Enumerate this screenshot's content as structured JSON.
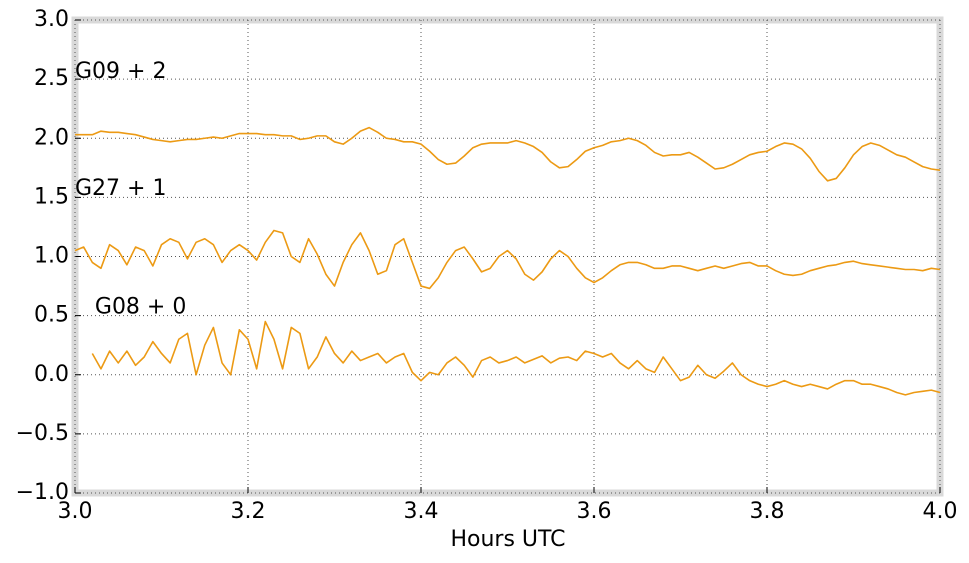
{
  "chart_data": {
    "type": "line",
    "xlabel": "Hours UTC",
    "xlim": [
      3.0,
      4.0
    ],
    "ylim": [
      -1.0,
      3.0
    ],
    "xticks": [
      {
        "value": 3.0,
        "label": "3.0"
      },
      {
        "value": 3.2,
        "label": "3.2"
      },
      {
        "value": 3.4,
        "label": "3.4"
      },
      {
        "value": 3.6,
        "label": "3.6"
      },
      {
        "value": 3.8,
        "label": "3.8"
      },
      {
        "value": 4.0,
        "label": "4.0"
      }
    ],
    "yticks": [
      {
        "value": -1.0,
        "label": "−1.0"
      },
      {
        "value": -0.5,
        "label": "−0.5"
      },
      {
        "value": 0.0,
        "label": "0.0"
      },
      {
        "value": 0.5,
        "label": "0.5"
      },
      {
        "value": 1.0,
        "label": "1.0"
      },
      {
        "value": 1.5,
        "label": "1.5"
      },
      {
        "value": 2.0,
        "label": "2.0"
      },
      {
        "value": 2.5,
        "label": "2.5"
      },
      {
        "value": 3.0,
        "label": "3.0"
      }
    ],
    "grid": true,
    "annotations": [
      {
        "text": "G09 + 2",
        "x": 3.0,
        "y": 2.56
      },
      {
        "text": "G27 + 1",
        "x": 3.0,
        "y": 1.57
      },
      {
        "text": "G08 + 0",
        "x": 3.023,
        "y": 0.57
      }
    ],
    "x": [
      3.0,
      3.01,
      3.02,
      3.03,
      3.04,
      3.05,
      3.06,
      3.07,
      3.08,
      3.09,
      3.1,
      3.11,
      3.12,
      3.13,
      3.14,
      3.15,
      3.16,
      3.17,
      3.18,
      3.19,
      3.2,
      3.21,
      3.22,
      3.23,
      3.24,
      3.25,
      3.26,
      3.27,
      3.28,
      3.29,
      3.3,
      3.31,
      3.32,
      3.33,
      3.34,
      3.35,
      3.36,
      3.37,
      3.38,
      3.39,
      3.4,
      3.41,
      3.42,
      3.43,
      3.44,
      3.45,
      3.46,
      3.47,
      3.48,
      3.49,
      3.5,
      3.51,
      3.52,
      3.53,
      3.54,
      3.55,
      3.56,
      3.57,
      3.58,
      3.59,
      3.6,
      3.61,
      3.62,
      3.63,
      3.64,
      3.65,
      3.66,
      3.67,
      3.68,
      3.69,
      3.7,
      3.71,
      3.72,
      3.73,
      3.74,
      3.75,
      3.76,
      3.77,
      3.78,
      3.79,
      3.8,
      3.81,
      3.82,
      3.83,
      3.84,
      3.85,
      3.86,
      3.87,
      3.88,
      3.89,
      3.9,
      3.91,
      3.92,
      3.93,
      3.94,
      3.95,
      3.96,
      3.97,
      3.98,
      3.99,
      4.0
    ],
    "series": [
      {
        "color": "#ec9a14",
        "values": [
          2.03,
          2.03,
          2.03,
          2.06,
          2.05,
          2.05,
          2.04,
          2.03,
          2.01,
          1.99,
          1.98,
          1.97,
          1.98,
          1.99,
          1.99,
          2.0,
          2.01,
          2.0,
          2.02,
          2.04,
          2.04,
          2.04,
          2.03,
          2.03,
          2.02,
          2.02,
          1.99,
          2.0,
          2.02,
          2.02,
          1.97,
          1.95,
          2.0,
          2.06,
          2.09,
          2.05,
          2.0,
          1.99,
          1.97,
          1.97,
          1.95,
          1.89,
          1.82,
          1.78,
          1.79,
          1.85,
          1.92,
          1.95,
          1.96,
          1.96,
          1.96,
          1.98,
          1.96,
          1.93,
          1.88,
          1.8,
          1.75,
          1.76,
          1.82,
          1.89,
          1.92,
          1.94,
          1.97,
          1.98,
          2.0,
          1.98,
          1.94,
          1.88,
          1.85,
          1.86,
          1.86,
          1.88,
          1.84,
          1.79,
          1.74,
          1.75,
          1.78,
          1.82,
          1.86,
          1.88,
          1.89,
          1.93,
          1.96,
          1.95,
          1.91,
          1.83,
          1.72,
          1.64,
          1.66,
          1.75,
          1.86,
          1.93,
          1.96,
          1.94,
          1.9,
          1.86,
          1.84,
          1.8,
          1.76,
          1.74,
          1.73
        ]
      },
      {
        "color": "#ec9a14",
        "values": [
          1.05,
          1.08,
          0.95,
          0.9,
          1.1,
          1.05,
          0.93,
          1.08,
          1.05,
          0.92,
          1.1,
          1.15,
          1.12,
          0.98,
          1.12,
          1.15,
          1.1,
          0.95,
          1.05,
          1.1,
          1.05,
          0.97,
          1.12,
          1.22,
          1.2,
          1.0,
          0.95,
          1.15,
          1.02,
          0.85,
          0.75,
          0.95,
          1.1,
          1.2,
          1.05,
          0.85,
          0.88,
          1.1,
          1.15,
          0.95,
          0.75,
          0.73,
          0.82,
          0.95,
          1.05,
          1.08,
          0.98,
          0.87,
          0.9,
          1.0,
          1.05,
          0.98,
          0.85,
          0.8,
          0.87,
          0.98,
          1.05,
          1.0,
          0.9,
          0.82,
          0.78,
          0.82,
          0.88,
          0.93,
          0.95,
          0.95,
          0.93,
          0.9,
          0.9,
          0.92,
          0.92,
          0.9,
          0.88,
          0.9,
          0.92,
          0.9,
          0.92,
          0.94,
          0.95,
          0.92,
          0.92,
          0.88,
          0.85,
          0.84,
          0.85,
          0.88,
          0.9,
          0.92,
          0.93,
          0.95,
          0.96,
          0.94,
          0.93,
          0.92,
          0.91,
          0.9,
          0.89,
          0.89,
          0.88,
          0.9,
          0.89
        ]
      },
      {
        "color": "#ec9a14",
        "values": [
          null,
          null,
          0.18,
          0.05,
          0.2,
          0.1,
          0.2,
          0.08,
          0.15,
          0.28,
          0.18,
          0.1,
          0.3,
          0.35,
          0.0,
          0.25,
          0.4,
          0.1,
          0.0,
          0.38,
          0.3,
          0.05,
          0.45,
          0.3,
          0.05,
          0.4,
          0.35,
          0.05,
          0.15,
          0.32,
          0.18,
          0.1,
          0.2,
          0.12,
          0.15,
          0.18,
          0.1,
          0.15,
          0.18,
          0.02,
          -0.05,
          0.02,
          0.0,
          0.1,
          0.15,
          0.08,
          -0.02,
          0.12,
          0.15,
          0.1,
          0.12,
          0.15,
          0.1,
          0.13,
          0.16,
          0.1,
          0.14,
          0.15,
          0.12,
          0.2,
          0.18,
          0.15,
          0.18,
          0.1,
          0.05,
          0.12,
          0.05,
          0.02,
          0.15,
          0.05,
          -0.05,
          -0.02,
          0.08,
          0.0,
          -0.03,
          0.03,
          0.1,
          0.0,
          -0.05,
          -0.08,
          -0.1,
          -0.08,
          -0.05,
          -0.08,
          -0.1,
          -0.08,
          -0.1,
          -0.12,
          -0.08,
          -0.05,
          -0.05,
          -0.08,
          -0.08,
          -0.1,
          -0.12,
          -0.15,
          -0.17,
          -0.15,
          -0.14,
          -0.13,
          -0.15
        ]
      }
    ]
  }
}
